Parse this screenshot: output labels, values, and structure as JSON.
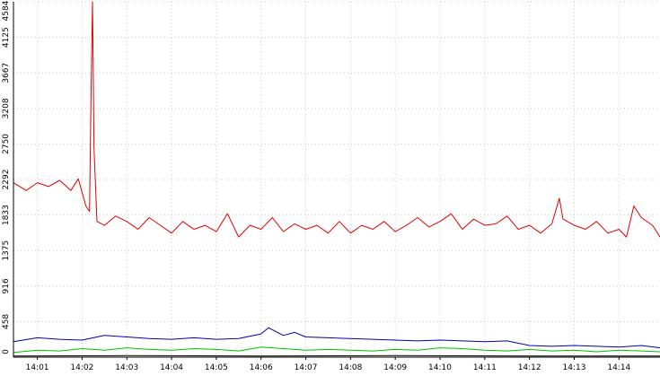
{
  "chart_data": {
    "type": "line",
    "title": "",
    "xlabel": "",
    "ylabel": "",
    "ylim": [
      0,
      4584
    ],
    "yticks": [
      0,
      458,
      916,
      1375,
      1833,
      2292,
      2750,
      3208,
      3667,
      4125,
      4584
    ],
    "ytick_labels": [
      "0",
      "458",
      "916",
      "1375",
      "1833",
      "2292",
      "2750",
      "3208",
      "3667",
      "4125",
      "4584"
    ],
    "xlim": [
      "14:00:28",
      "14:14:55"
    ],
    "xticks": [
      "14:01",
      "14:02",
      "14:03",
      "14:04",
      "14:05",
      "14:06",
      "14:07",
      "14:08",
      "14:09",
      "14:10",
      "14:11",
      "14:12",
      "14:13",
      "14:14"
    ],
    "grid": true,
    "series": [
      {
        "key": "red",
        "color": "#e00000",
        "x": [
          "14:00:28",
          "14:00:45",
          "14:01:00",
          "14:01:15",
          "14:01:30",
          "14:01:45",
          "14:01:55",
          "14:02:05",
          "14:02:10",
          "14:02:12",
          "14:02:14",
          "14:02:16",
          "14:02:20",
          "14:02:30",
          "14:02:45",
          "14:03:00",
          "14:03:15",
          "14:03:30",
          "14:03:45",
          "14:04:00",
          "14:04:15",
          "14:04:30",
          "14:04:45",
          "14:05:00",
          "14:05:15",
          "14:05:30",
          "14:05:45",
          "14:06:00",
          "14:06:15",
          "14:06:30",
          "14:06:45",
          "14:07:00",
          "14:07:15",
          "14:07:30",
          "14:07:45",
          "14:08:00",
          "14:08:15",
          "14:08:30",
          "14:08:45",
          "14:09:00",
          "14:09:15",
          "14:09:30",
          "14:09:45",
          "14:10:00",
          "14:10:15",
          "14:10:30",
          "14:10:45",
          "14:11:00",
          "14:11:15",
          "14:11:30",
          "14:11:45",
          "14:12:00",
          "14:12:15",
          "14:12:30",
          "14:12:40",
          "14:12:45",
          "14:13:00",
          "14:13:15",
          "14:13:30",
          "14:13:45",
          "14:14:00",
          "14:14:10",
          "14:14:20",
          "14:14:30",
          "14:14:45",
          "14:14:55"
        ],
        "values": [
          2250,
          2150,
          2250,
          2200,
          2280,
          2150,
          2300,
          1950,
          1880,
          3400,
          4584,
          2700,
          1750,
          1700,
          1820,
          1750,
          1650,
          1800,
          1700,
          1600,
          1750,
          1650,
          1700,
          1620,
          1850,
          1550,
          1700,
          1650,
          1800,
          1620,
          1720,
          1650,
          1700,
          1600,
          1750,
          1600,
          1700,
          1650,
          1750,
          1620,
          1700,
          1800,
          1680,
          1750,
          1850,
          1650,
          1780,
          1700,
          1720,
          1820,
          1650,
          1700,
          1600,
          1720,
          2050,
          1780,
          1700,
          1650,
          1750,
          1600,
          1650,
          1550,
          1950,
          1800,
          1700,
          1550
        ]
      },
      {
        "key": "blue",
        "color": "#0000b0",
        "x": [
          "14:00:28",
          "14:01:00",
          "14:01:30",
          "14:02:00",
          "14:02:30",
          "14:03:00",
          "14:03:30",
          "14:04:00",
          "14:04:30",
          "14:05:00",
          "14:05:30",
          "14:06:00",
          "14:06:10",
          "14:06:30",
          "14:06:45",
          "14:07:00",
          "14:07:30",
          "14:08:00",
          "14:08:30",
          "14:09:00",
          "14:09:30",
          "14:10:00",
          "14:10:30",
          "14:11:00",
          "14:11:30",
          "14:12:00",
          "14:12:30",
          "14:13:00",
          "14:13:30",
          "14:14:00",
          "14:14:30",
          "14:14:55"
        ],
        "values": [
          200,
          250,
          230,
          220,
          280,
          260,
          240,
          230,
          250,
          230,
          240,
          300,
          380,
          280,
          320,
          260,
          250,
          240,
          230,
          220,
          210,
          220,
          210,
          200,
          210,
          150,
          140,
          150,
          140,
          130,
          150,
          120
        ]
      },
      {
        "key": "green",
        "color": "#00c000",
        "x": [
          "14:00:28",
          "14:01:00",
          "14:01:30",
          "14:02:00",
          "14:02:30",
          "14:03:00",
          "14:03:30",
          "14:04:00",
          "14:04:30",
          "14:05:00",
          "14:05:30",
          "14:06:00",
          "14:06:30",
          "14:07:00",
          "14:07:30",
          "14:08:00",
          "14:08:30",
          "14:09:00",
          "14:09:30",
          "14:10:00",
          "14:10:30",
          "14:11:00",
          "14:11:30",
          "14:12:00",
          "14:12:30",
          "14:13:00",
          "14:13:30",
          "14:14:00",
          "14:14:30",
          "14:14:55"
        ],
        "values": [
          60,
          90,
          80,
          110,
          90,
          120,
          100,
          90,
          110,
          100,
          80,
          130,
          110,
          90,
          100,
          90,
          80,
          100,
          90,
          120,
          110,
          90,
          80,
          100,
          80,
          90,
          70,
          90,
          80,
          70
        ]
      },
      {
        "key": "black",
        "color": "#000000",
        "x": [
          "14:00:28",
          "14:03:00",
          "14:06:00",
          "14:09:00",
          "14:12:00",
          "14:14:55"
        ],
        "values": [
          15,
          20,
          15,
          20,
          15,
          15
        ]
      }
    ]
  }
}
